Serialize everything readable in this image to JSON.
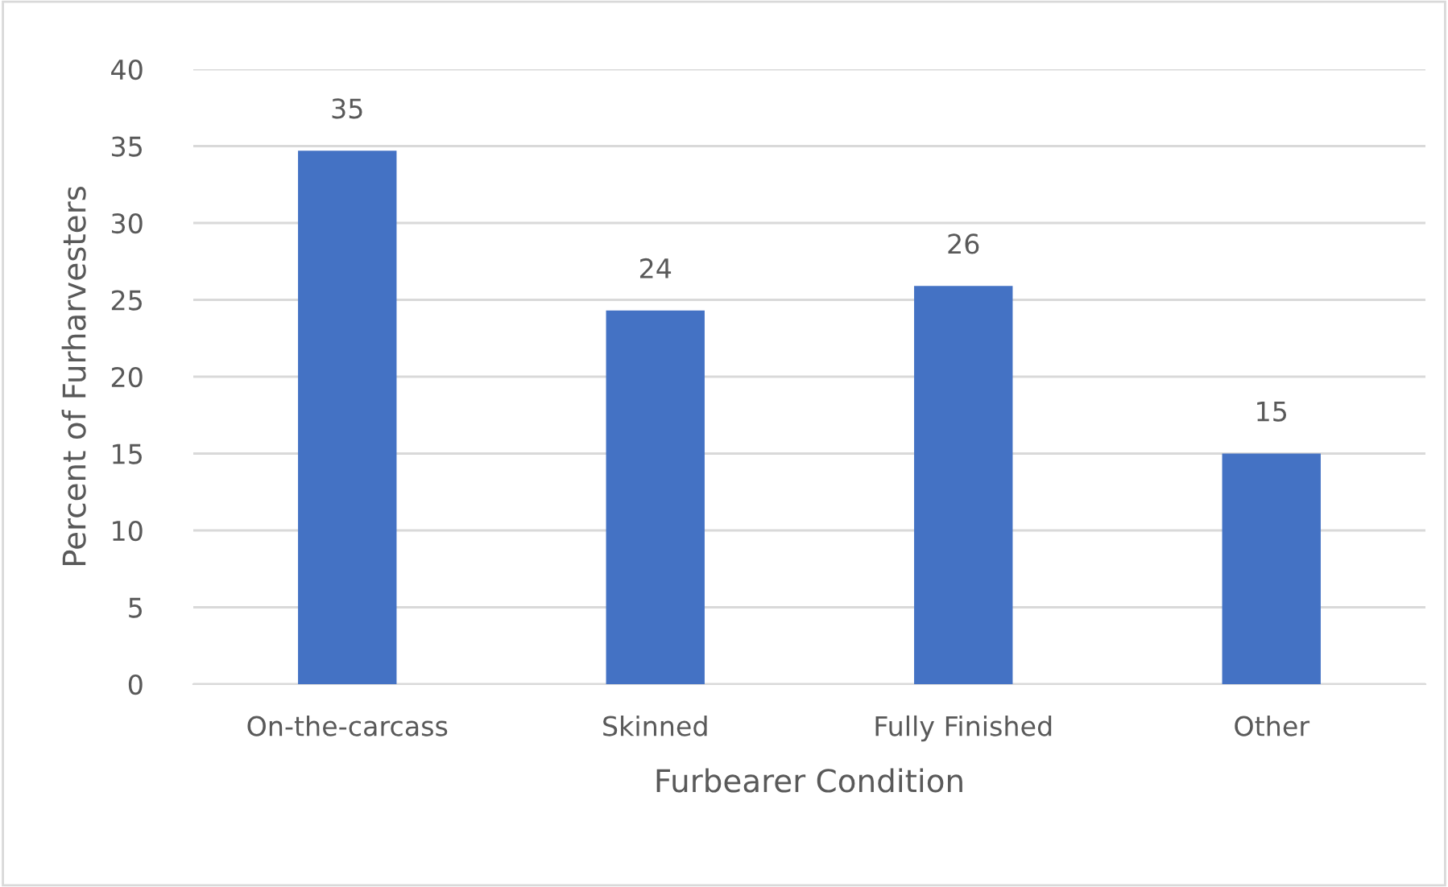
{
  "chart_data": {
    "type": "bar",
    "xlabel": "Furbearer Condition",
    "ylabel": "Percent of Furharvesters",
    "categories": [
      "On-the-carcass",
      "Skinned",
      "Fully Finished",
      "Other"
    ],
    "values": [
      34.7,
      24.3,
      25.9,
      15
    ],
    "value_labels": [
      "35",
      "24",
      "26",
      "15"
    ],
    "color": "#4472c4",
    "ylim": [
      0,
      40
    ],
    "yticks": [
      0,
      5,
      10,
      15,
      20,
      25,
      30,
      35,
      40
    ],
    "grid": "y",
    "legend": false
  }
}
